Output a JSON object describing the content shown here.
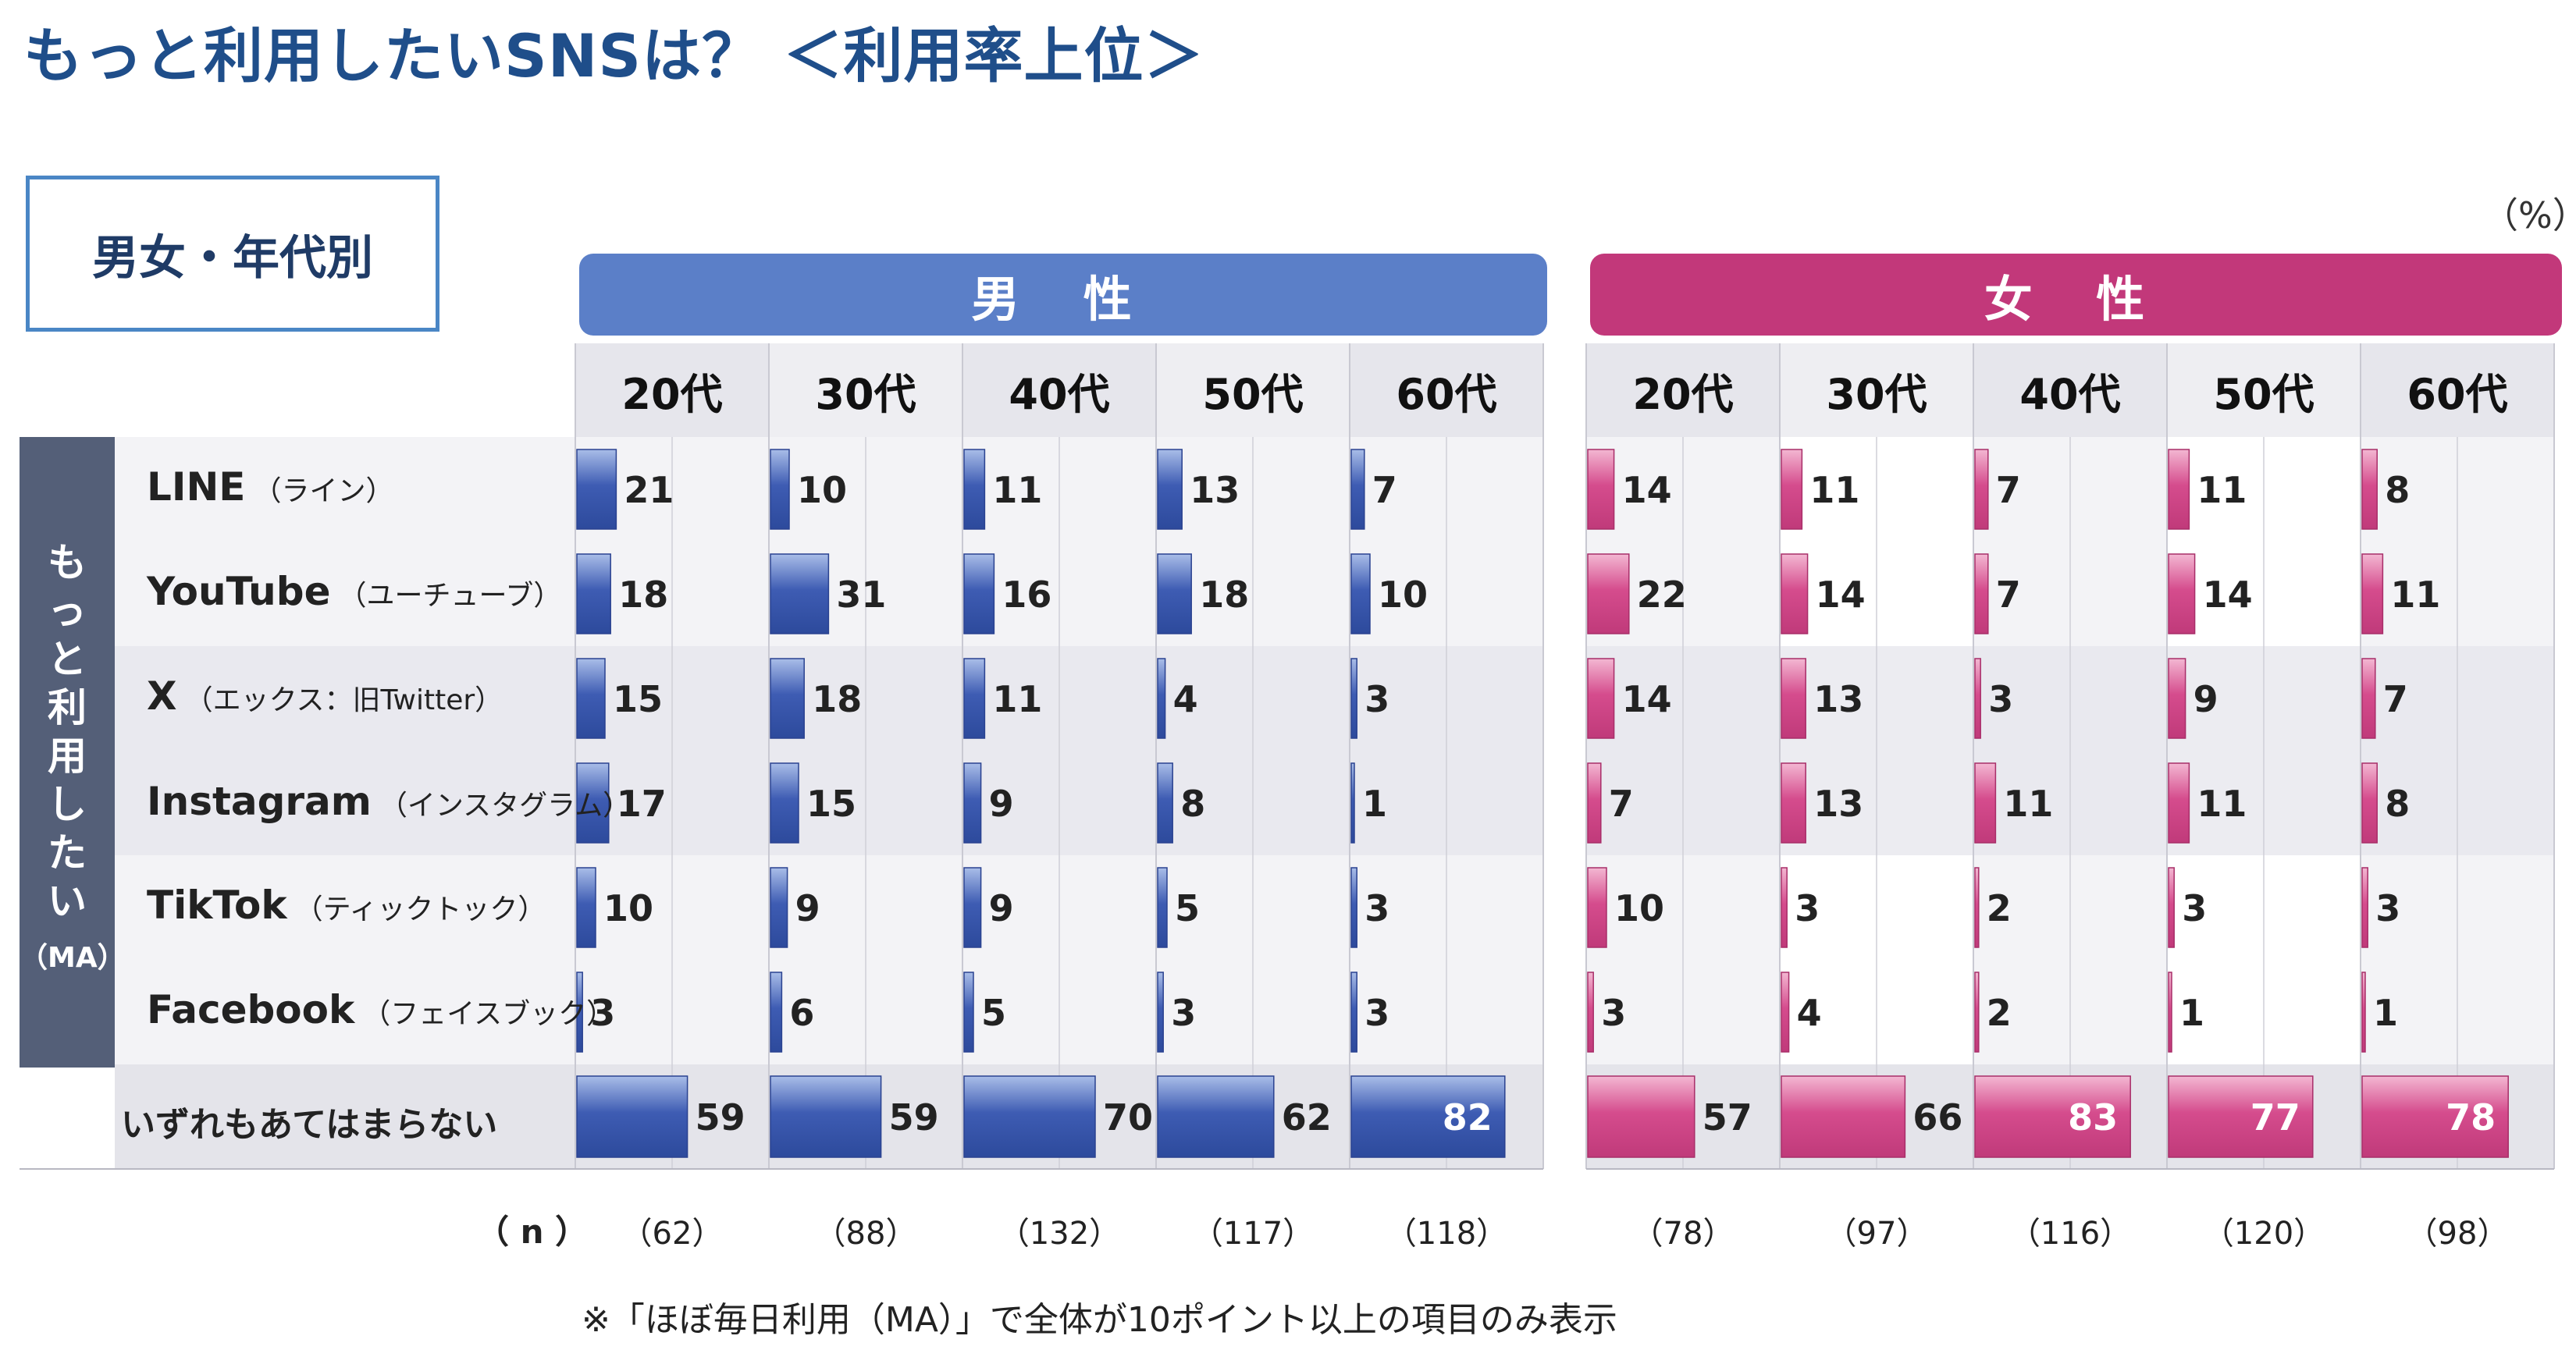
{
  "title": "もっと利用したいSNSは？ ＜利用率上位＞",
  "subtitle": "男女・年代別",
  "unit": "（%）",
  "side_label": "もっと利用したい",
  "side_label_suffix": "（MA）",
  "n_label": "（ n ）",
  "footnote": "※「ほぼ毎日利用（MA）」で全体が10ポイント以上の項目のみ表示",
  "colors": {
    "male": "#3b5bb0",
    "female": "#d24a8a",
    "male_header": "#5b7fc8",
    "female_header": "#c2387a",
    "side": "#545f78"
  },
  "chart_data": {
    "type": "bar",
    "title": "もっと利用したいSNSは？ ＜利用率上位＞",
    "xlim": [
      0,
      100
    ],
    "rows": [
      {
        "name": "LINE",
        "sub": "（ライン）"
      },
      {
        "name": "YouTube",
        "sub": "（ユーチューブ）"
      },
      {
        "name": "X",
        "sub": "（エックス：旧Twitter）"
      },
      {
        "name": "Instagram",
        "sub": "（インスタグラム）"
      },
      {
        "name": "TikTok",
        "sub": "（ティックトック）"
      },
      {
        "name": "Facebook",
        "sub": "（フェイスブック）"
      },
      {
        "name": "いずれもあてはまらない",
        "sub": ""
      }
    ],
    "groups": [
      {
        "name": "男 性",
        "color": "male",
        "columns": [
          {
            "label": "20代",
            "n": "（62）",
            "values": [
              21,
              18,
              15,
              17,
              10,
              3,
              59
            ]
          },
          {
            "label": "30代",
            "n": "（88）",
            "values": [
              10,
              31,
              18,
              15,
              9,
              6,
              59
            ]
          },
          {
            "label": "40代",
            "n": "（132）",
            "values": [
              11,
              16,
              11,
              9,
              9,
              5,
              70
            ]
          },
          {
            "label": "50代",
            "n": "（117）",
            "values": [
              13,
              18,
              4,
              8,
              5,
              3,
              62
            ]
          },
          {
            "label": "60代",
            "n": "（118）",
            "values": [
              7,
              10,
              3,
              1,
              3,
              3,
              82
            ]
          }
        ]
      },
      {
        "name": "女 性",
        "color": "female",
        "columns": [
          {
            "label": "20代",
            "n": "（78）",
            "values": [
              14,
              22,
              14,
              7,
              10,
              3,
              57
            ]
          },
          {
            "label": "30代",
            "n": "（97）",
            "values": [
              11,
              14,
              13,
              13,
              3,
              4,
              66
            ]
          },
          {
            "label": "40代",
            "n": "（116）",
            "values": [
              7,
              7,
              3,
              11,
              2,
              2,
              83
            ]
          },
          {
            "label": "50代",
            "n": "（120）",
            "values": [
              11,
              14,
              9,
              11,
              3,
              1,
              77
            ]
          },
          {
            "label": "60代",
            "n": "（98）",
            "values": [
              8,
              11,
              7,
              8,
              3,
              1,
              78
            ]
          }
        ]
      }
    ]
  }
}
